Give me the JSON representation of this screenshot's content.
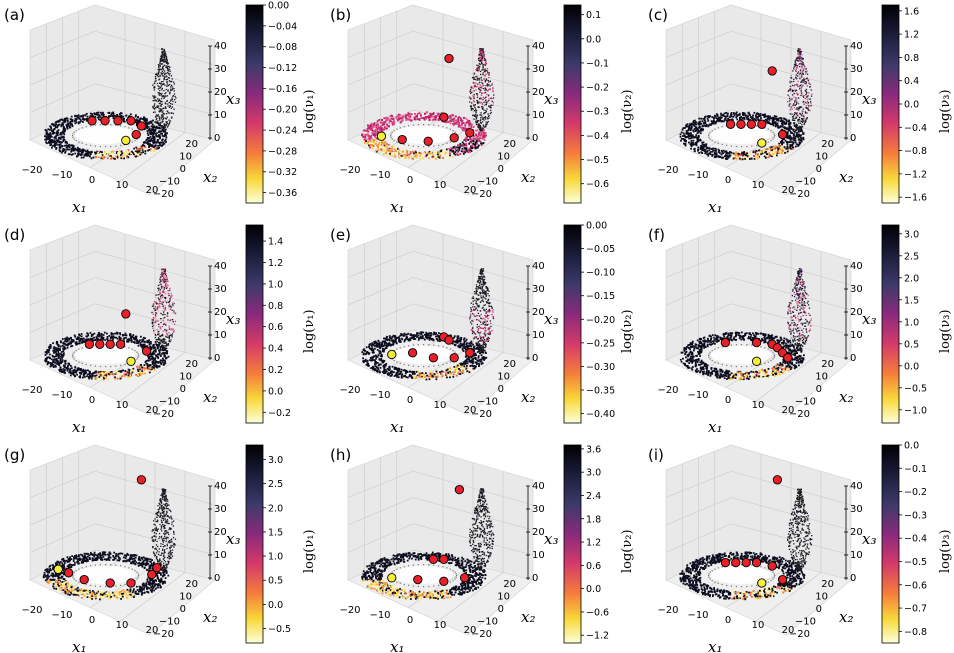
{
  "chart_data": [
    {
      "type": "scatter",
      "label": "(a)",
      "cbar_label": "log(ν₁)",
      "cbar_ticks": [
        "0.00",
        "−0.04",
        "−0.08",
        "−0.12",
        "−0.16",
        "−0.20",
        "−0.24",
        "−0.28",
        "−0.32",
        "−0.36"
      ],
      "cbar_range": [
        -0.38,
        0.0
      ],
      "xlabel": "x₁",
      "ylabel": "x₂",
      "zlabel": "x₃",
      "x_ticks": [
        "−20",
        "−10",
        "0",
        "10",
        "20"
      ],
      "y_ticks": [
        "20",
        "10",
        "0",
        "−10",
        "−20"
      ],
      "z_ticks": [
        "0",
        "10",
        "20",
        "30",
        "40"
      ],
      "ring": "dark",
      "highlight": "low-front",
      "red_points": [
        [
          -5,
          8,
          3
        ],
        [
          0,
          8,
          3
        ],
        [
          5,
          8,
          3
        ],
        [
          10,
          8,
          3
        ],
        [
          14,
          2,
          3
        ],
        [
          12,
          -8,
          3
        ]
      ],
      "yellow_points": [
        [
          8,
          -15,
          3
        ]
      ]
    },
    {
      "type": "scatter",
      "label": "(b)",
      "cbar_label": "log(ν₂)",
      "cbar_ticks": [
        "0.1",
        "0.0",
        "−0.1",
        "−0.2",
        "−0.3",
        "−0.4",
        "−0.5",
        "−0.6"
      ],
      "cbar_range": [
        -0.68,
        0.14
      ],
      "xlabel": "x₁",
      "ylabel": "x₂",
      "zlabel": "x₃",
      "x_ticks": [
        "−20",
        "−10",
        "0",
        "10",
        "20"
      ],
      "y_ticks": [
        "20",
        "10",
        "0",
        "−10",
        "−20"
      ],
      "z_ticks": [
        "0",
        "10",
        "20",
        "30",
        "40"
      ],
      "ring": "magenta",
      "highlight": "left-yellow",
      "red_points": [
        [
          10,
          15,
          26
        ],
        [
          8,
          -2,
          8
        ],
        [
          -8,
          -14,
          3
        ],
        [
          2,
          -16,
          3
        ],
        [
          12,
          -12,
          3
        ],
        [
          18,
          -6,
          3
        ]
      ],
      "yellow_points": [
        [
          -16,
          -10,
          3
        ]
      ]
    },
    {
      "type": "scatter",
      "label": "(c)",
      "cbar_label": "log(ν₃)",
      "cbar_ticks": [
        "1.6",
        "1.2",
        "0.8",
        "0.4",
        "0.0",
        "−0.4",
        "−0.8",
        "−1.2",
        "−1.6"
      ],
      "cbar_range": [
        -1.7,
        1.7
      ],
      "xlabel": "x₁",
      "ylabel": "x₂",
      "zlabel": "x₃",
      "x_ticks": [
        "−20",
        "−10",
        "0",
        "10",
        "20"
      ],
      "y_ticks": [
        "20",
        "10",
        "0",
        "−10",
        "−20"
      ],
      "z_ticks": [
        "0",
        "10",
        "20",
        "30",
        "40"
      ],
      "ring": "dark",
      "highlight": "low-front",
      "red_points": [
        [
          12,
          12,
          22
        ],
        [
          -4,
          4,
          3
        ],
        [
          0,
          4,
          3
        ],
        [
          4,
          4,
          3
        ],
        [
          8,
          4,
          3
        ],
        [
          16,
          -8,
          3
        ]
      ],
      "yellow_points": [
        [
          8,
          -18,
          3
        ]
      ]
    },
    {
      "type": "scatter",
      "label": "(d)",
      "cbar_label": "log(ν₁)",
      "cbar_ticks": [
        "1.4",
        "1.2",
        "1.0",
        "0.8",
        "0.6",
        "0.4",
        "0.2",
        "0.0",
        "−0.2"
      ],
      "cbar_range": [
        -0.3,
        1.55
      ],
      "xlabel": "x₁",
      "ylabel": "x₂",
      "zlabel": "x₃",
      "x_ticks": [
        "−20",
        "−10",
        "0",
        "10",
        "20"
      ],
      "y_ticks": [
        "20",
        "10",
        "0",
        "−10",
        "−20"
      ],
      "z_ticks": [
        "0",
        "10",
        "20",
        "30",
        "40"
      ],
      "ring": "dark",
      "highlight": "low-front",
      "red_points": [
        [
          8,
          8,
          14
        ],
        [
          -6,
          4,
          3
        ],
        [
          -2,
          4,
          3
        ],
        [
          2,
          4,
          3
        ],
        [
          6,
          4,
          3
        ],
        [
          16,
          -4,
          3
        ]
      ],
      "yellow_points": [
        [
          10,
          -16,
          3
        ]
      ]
    },
    {
      "type": "scatter",
      "label": "(e)",
      "cbar_label": "log(ν₂)",
      "cbar_ticks": [
        "0.00",
        "−0.05",
        "−0.10",
        "−0.15",
        "−0.20",
        "−0.25",
        "−0.30",
        "−0.35",
        "−0.40"
      ],
      "cbar_range": [
        -0.42,
        0.0
      ],
      "xlabel": "x₁",
      "ylabel": "x₂",
      "zlabel": "x₃",
      "x_ticks": [
        "−20",
        "−10",
        "0",
        "10",
        "20"
      ],
      "y_ticks": [
        "20",
        "10",
        "0",
        "−10",
        "−20"
      ],
      "z_ticks": [
        "0",
        "10",
        "20",
        "30",
        "40"
      ],
      "ring": "dark",
      "highlight": "low-front",
      "red_points": [
        [
          8,
          4,
          6
        ],
        [
          10,
          6,
          4
        ],
        [
          -4,
          -6,
          3
        ],
        [
          4,
          -12,
          3
        ],
        [
          12,
          -12,
          3
        ],
        [
          18,
          -6,
          3
        ]
      ],
      "yellow_points": [
        [
          -12,
          -8,
          3
        ]
      ]
    },
    {
      "type": "scatter",
      "label": "(f)",
      "cbar_label": "log(ν₃)",
      "cbar_ticks": [
        "3.0",
        "2.5",
        "2.0",
        "1.5",
        "1.0",
        "0.5",
        "0.0",
        "−0.5",
        "−1.0"
      ],
      "cbar_range": [
        -1.3,
        3.2
      ],
      "xlabel": "x₁",
      "ylabel": "x₂",
      "zlabel": "x₃",
      "x_ticks": [
        "−20",
        "−10",
        "0",
        "10",
        "20"
      ],
      "y_ticks": [
        "20",
        "10",
        "0",
        "−10",
        "−20"
      ],
      "z_ticks": [
        "0",
        "10",
        "20",
        "30",
        "40"
      ],
      "ring": "dark",
      "highlight": "low-front",
      "red_points": [
        [
          -6,
          6,
          3
        ],
        [
          6,
          6,
          3
        ],
        [
          12,
          4,
          3
        ],
        [
          14,
          0,
          3
        ],
        [
          16,
          -6,
          3
        ],
        [
          18,
          -12,
          3
        ]
      ],
      "yellow_points": [
        [
          6,
          -16,
          3
        ]
      ]
    },
    {
      "type": "scatter",
      "label": "(g)",
      "cbar_label": "log(ν₁)",
      "cbar_ticks": [
        "3.0",
        "2.5",
        "2.0",
        "1.5",
        "1.0",
        "0.5",
        "0.0",
        "−0.5"
      ],
      "cbar_range": [
        -0.8,
        3.3
      ],
      "xlabel": "x₁",
      "ylabel": "x₂",
      "zlabel": "x₃",
      "x_ticks": [
        "−20",
        "−10",
        "0",
        "10",
        "20"
      ],
      "y_ticks": [
        "20",
        "10",
        "0",
        "−10",
        "−20"
      ],
      "z_ticks": [
        "0",
        "10",
        "20",
        "30",
        "40"
      ],
      "ring": "dark",
      "highlight": "left-yellow",
      "red_points": [
        [
          14,
          14,
          34
        ],
        [
          -14,
          -6,
          3
        ],
        [
          -8,
          -14,
          3
        ],
        [
          2,
          -18,
          3
        ],
        [
          10,
          -18,
          3
        ],
        [
          18,
          -8,
          3
        ],
        [
          20,
          0,
          3
        ]
      ],
      "yellow_points": [
        [
          -18,
          -2,
          3
        ]
      ]
    },
    {
      "type": "scatter",
      "label": "(h)",
      "cbar_label": "log(ν₂)",
      "cbar_ticks": [
        "3.6",
        "3.0",
        "2.4",
        "1.8",
        "1.2",
        "0.6",
        "0.0",
        "−0.6",
        "−1.2"
      ],
      "cbar_range": [
        -1.4,
        3.7
      ],
      "xlabel": "x₁",
      "ylabel": "x₂",
      "zlabel": "x₃",
      "x_ticks": [
        "−20",
        "−10",
        "0",
        "10",
        "20"
      ],
      "y_ticks": [
        "20",
        "10",
        "0",
        "−10",
        "−20"
      ],
      "z_ticks": [
        "0",
        "10",
        "20",
        "30",
        "40"
      ],
      "ring": "dark",
      "highlight": "left-yellow",
      "red_points": [
        [
          14,
          14,
          30
        ],
        [
          4,
          4,
          5
        ],
        [
          8,
          4,
          5
        ],
        [
          -2,
          -14,
          3
        ],
        [
          8,
          -16,
          3
        ],
        [
          16,
          -12,
          3
        ]
      ],
      "yellow_points": [
        [
          -12,
          -12,
          3
        ]
      ]
    },
    {
      "type": "scatter",
      "label": "(i)",
      "cbar_label": "log(ν₃)",
      "cbar_ticks": [
        "0.0",
        "−0.1",
        "−0.2",
        "−0.3",
        "−0.4",
        "−0.5",
        "−0.6",
        "−0.7",
        "−0.8"
      ],
      "cbar_range": [
        -0.85,
        0.0
      ],
      "xlabel": "x₁",
      "ylabel": "x₂",
      "zlabel": "x₃",
      "x_ticks": [
        "−20",
        "−10",
        "0",
        "10",
        "20"
      ],
      "y_ticks": [
        "20",
        "10",
        "0",
        "−10",
        "−20"
      ],
      "z_ticks": [
        "0",
        "10",
        "20",
        "30",
        "40"
      ],
      "ring": "dark",
      "highlight": "low-front",
      "red_points": [
        [
          14,
          14,
          34
        ],
        [
          -6,
          6,
          3
        ],
        [
          -2,
          6,
          3
        ],
        [
          2,
          6,
          3
        ],
        [
          6,
          6,
          3
        ],
        [
          12,
          2,
          3
        ],
        [
          16,
          -14,
          3
        ]
      ],
      "yellow_points": [
        [
          8,
          -18,
          3
        ]
      ]
    }
  ],
  "colors": {
    "dark": "#0b0d1e",
    "point_red": "#e8202a",
    "point_yellow": "#f4ee3a",
    "pane": "#e9e9e9",
    "grid": "#c8c8c8"
  }
}
